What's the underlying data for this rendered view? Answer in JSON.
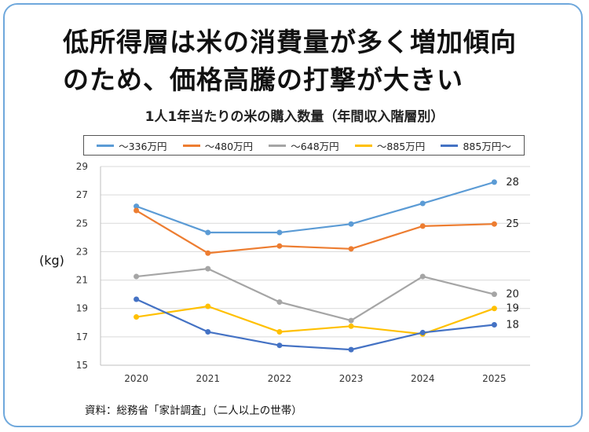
{
  "headline": {
    "line1": "低所得層は米の消費量が多く増加傾向",
    "line2": "のため、価格高騰の打撃が大きい"
  },
  "source": "資料：総務省「家計調査」（二人以上の世帯）",
  "chart_data": {
    "type": "line",
    "title": "1人1年当たりの米の購入数量（年間収入階層別）",
    "ylabel": "(kg)",
    "xlabel": "",
    "categories": [
      "2020",
      "2021",
      "2022",
      "2023",
      "2024",
      "2025"
    ],
    "ylim": [
      15,
      29
    ],
    "yticks": [
      15,
      17,
      19,
      21,
      23,
      25,
      27,
      29
    ],
    "grid": "horizontal",
    "legend_position": "top",
    "series": [
      {
        "name": "～336万円",
        "color": "#5b9bd5",
        "values": [
          26.2,
          24.35,
          24.35,
          24.95,
          26.4,
          27.9
        ],
        "end_label": "28"
      },
      {
        "name": "～480万円",
        "color": "#ed7d31",
        "values": [
          25.9,
          22.9,
          23.4,
          23.2,
          24.8,
          24.95
        ],
        "end_label": "25"
      },
      {
        "name": "～648万円",
        "color": "#a5a5a5",
        "values": [
          21.25,
          21.8,
          19.45,
          18.15,
          21.25,
          20.0
        ],
        "end_label": "20"
      },
      {
        "name": "～885万円",
        "color": "#ffc000",
        "values": [
          18.4,
          19.15,
          17.35,
          17.75,
          17.2,
          19.0
        ],
        "end_label": "19"
      },
      {
        "name": "885万円～",
        "color": "#4472c4",
        "values": [
          19.65,
          17.35,
          16.4,
          16.1,
          17.3,
          17.85
        ],
        "end_label": "18"
      }
    ]
  }
}
